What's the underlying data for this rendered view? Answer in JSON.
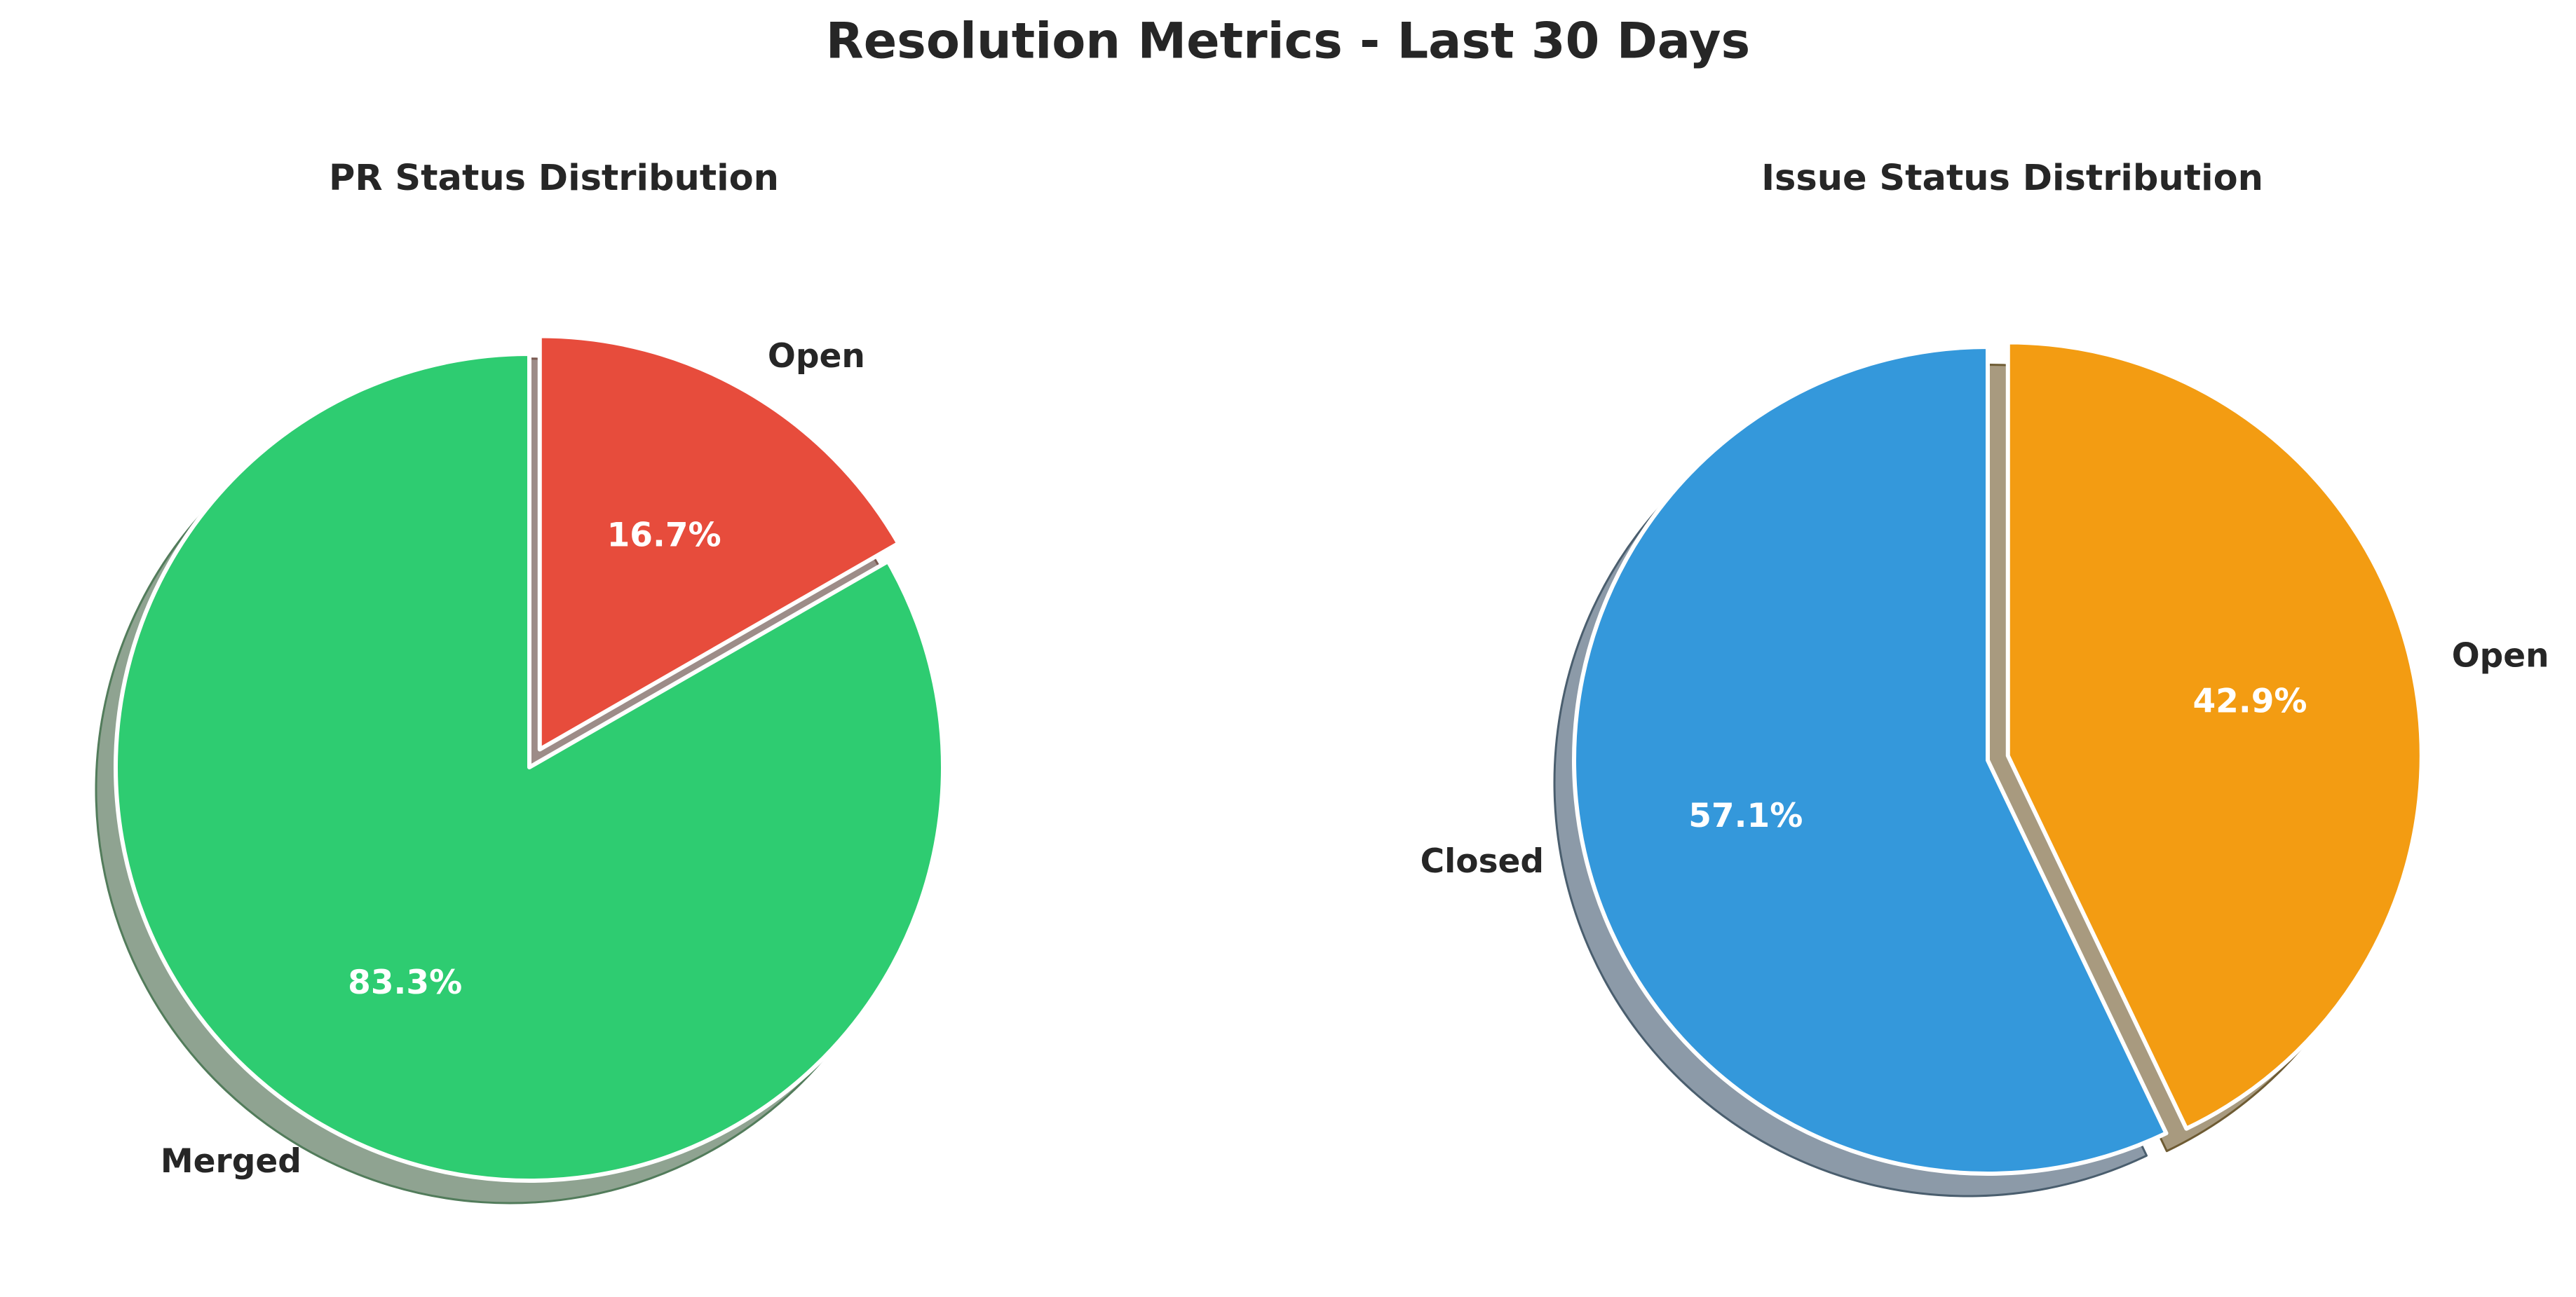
{
  "figure": {
    "title": "Resolution Metrics - Last 30 Days",
    "background_color": "#ffffff",
    "text_color": "#262626"
  },
  "chart_data": [
    {
      "type": "pie",
      "title": "PR Status Distribution",
      "slices": [
        {
          "label": "Merged",
          "value": 83.3,
          "pct_label": "83.3%",
          "color": "#2ecc71",
          "shadow_color": "#8fa391",
          "shadow_edge_color": "#527c5b",
          "explode": 0.0
        },
        {
          "label": "Open",
          "value": 16.7,
          "pct_label": "16.7%",
          "color": "#e74c3c",
          "shadow_color": "#9d8c88",
          "shadow_edge_color": "#7a5a52",
          "explode": 0.05
        }
      ],
      "startangle": 90,
      "counterclock": true,
      "labeldistance": 1.1,
      "pctdistance": 0.6,
      "shadow": true,
      "legend": false
    },
    {
      "type": "pie",
      "title": "Issue Status Distribution",
      "slices": [
        {
          "label": "Closed",
          "value": 57.1,
          "pct_label": "57.1%",
          "color": "#3498db",
          "shadow_color": "#8c9aa8",
          "shadow_edge_color": "#4a5e6e",
          "explode": 0.0
        },
        {
          "label": "Open",
          "value": 42.9,
          "pct_label": "42.9%",
          "color": "#f39c12",
          "shadow_color": "#a89a7f",
          "shadow_edge_color": "#6e5b33",
          "explode": 0.05
        }
      ],
      "startangle": 90,
      "counterclock": true,
      "labeldistance": 1.1,
      "pctdistance": 0.6,
      "shadow": true,
      "legend": false
    }
  ]
}
